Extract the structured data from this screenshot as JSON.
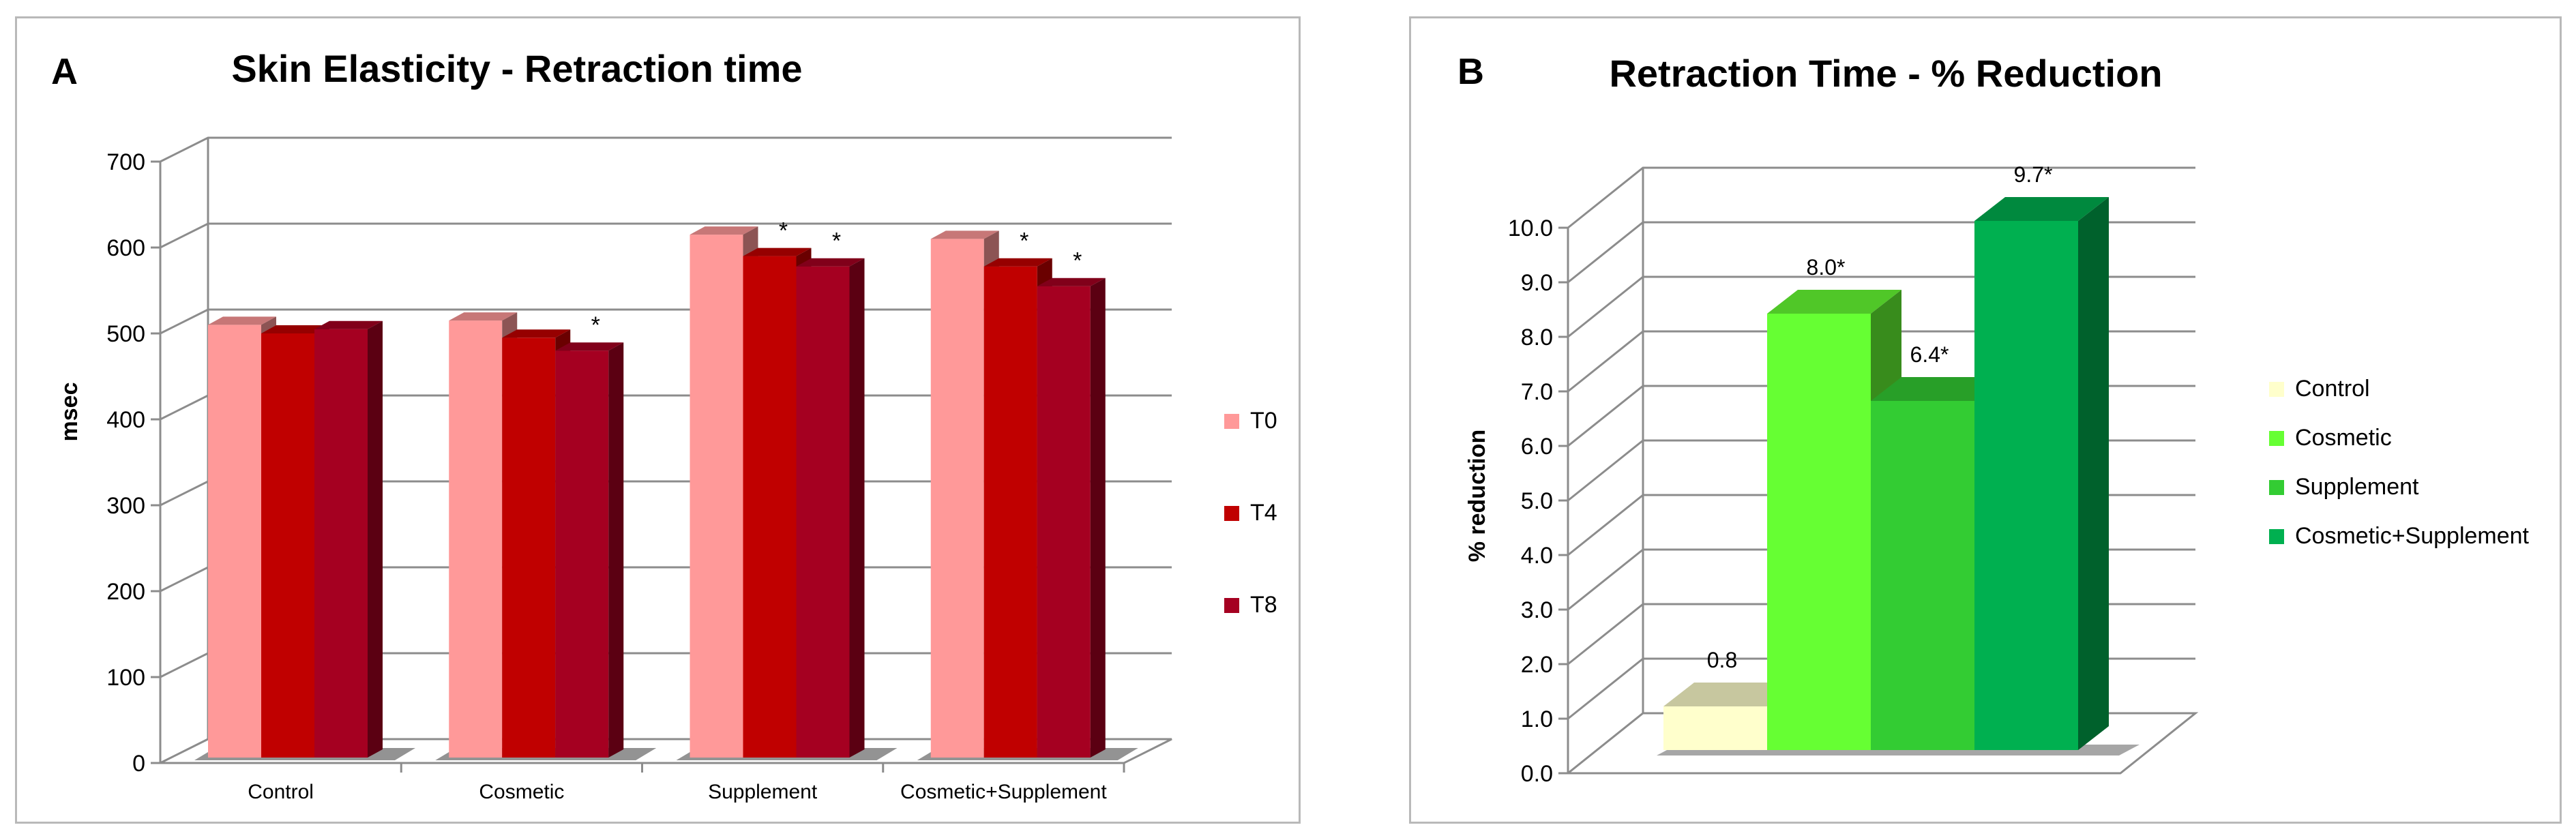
{
  "chart_data": [
    {
      "id": "A",
      "type": "bar",
      "panel_letter": "A",
      "title": "Skin Elasticity - Retraction time",
      "xlabel": "",
      "ylabel": "msec",
      "ylim": [
        0,
        700
      ],
      "yticks": [
        "0",
        "100",
        "200",
        "300",
        "400",
        "500",
        "600",
        "700"
      ],
      "categories": [
        "Control",
        "Cosmetic",
        "Supplement",
        "Cosmetic+Supplement"
      ],
      "legend_position": "right",
      "series": [
        {
          "name": "T0",
          "color": "#ff9999",
          "values": [
            510,
            515,
            615,
            610
          ],
          "annotations": [
            "",
            "",
            "",
            ""
          ]
        },
        {
          "name": "T4",
          "color": "#c00000",
          "values": [
            500,
            495,
            590,
            578
          ],
          "annotations": [
            "",
            "",
            "*",
            "*"
          ]
        },
        {
          "name": "T8",
          "color": "#a50021",
          "values": [
            505,
            480,
            578,
            555
          ],
          "annotations": [
            "",
            "*",
            "*",
            "*"
          ]
        }
      ]
    },
    {
      "id": "B",
      "type": "bar",
      "panel_letter": "B",
      "title": "Retraction Time - % Reduction",
      "xlabel": "",
      "ylabel": "% reduction",
      "ylim": [
        0,
        10
      ],
      "yticks": [
        "0.0",
        "1.0",
        "2.0",
        "3.0",
        "4.0",
        "5.0",
        "6.0",
        "7.0",
        "8.0",
        "9.0",
        "10.0"
      ],
      "legend_position": "right",
      "series": [
        {
          "name": "Control",
          "color": "#ffffcc",
          "value": 0.8,
          "label": "0.8"
        },
        {
          "name": "Cosmetic",
          "color": "#66ff33",
          "value": 8.0,
          "label": "8.0*"
        },
        {
          "name": "Supplement",
          "color": "#33cc33",
          "value": 6.4,
          "label": "6.4*"
        },
        {
          "name": "Cosmetic+Supplement",
          "color": "#00b050",
          "value": 9.7,
          "label": "9.7*"
        }
      ]
    }
  ]
}
